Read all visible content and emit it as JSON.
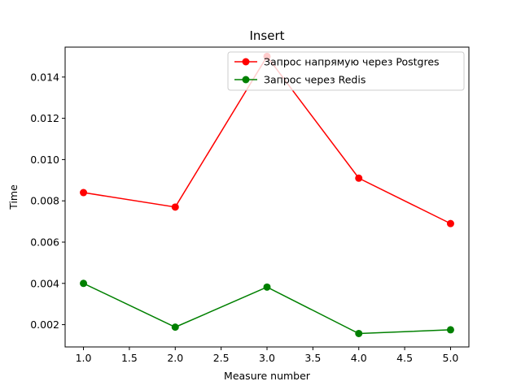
{
  "chart_data": {
    "type": "line",
    "title": "Insert",
    "xlabel": "Measure number",
    "ylabel": "Time",
    "x": [
      1.0,
      2.0,
      3.0,
      4.0,
      5.0
    ],
    "xlim": [
      0.8,
      5.2
    ],
    "ylim": [
      0.00092,
      0.01545
    ],
    "xticks": [
      1.0,
      1.5,
      2.0,
      2.5,
      3.0,
      3.5,
      4.0,
      4.5,
      5.0
    ],
    "xtick_labels": [
      "1.0",
      "1.5",
      "2.0",
      "2.5",
      "3.0",
      "3.5",
      "4.0",
      "4.5",
      "5.0"
    ],
    "yticks": [
      0.002,
      0.004,
      0.006,
      0.008,
      0.01,
      0.012,
      0.014
    ],
    "ytick_labels": [
      "0.002",
      "0.004",
      "0.006",
      "0.008",
      "0.010",
      "0.012",
      "0.014"
    ],
    "grid": false,
    "legend_position": "top-right",
    "series": [
      {
        "name": "Запрос напрямую через Postgres",
        "color": "#ff0000",
        "marker": "circle",
        "values": [
          0.0084,
          0.0077,
          0.015,
          0.0091,
          0.0069
        ]
      },
      {
        "name": "Запрос через Redis",
        "color": "#008000",
        "marker": "circle",
        "values": [
          0.004,
          0.00188,
          0.00382,
          0.00157,
          0.00175
        ]
      }
    ]
  }
}
